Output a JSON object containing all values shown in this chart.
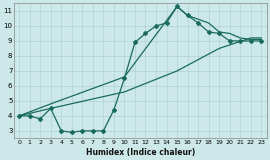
{
  "xlabel": "Humidex (Indice chaleur)",
  "bg_color": "#cce8e8",
  "line_color": "#1a6b5e",
  "grid_color": "#aacccc",
  "xlim": [
    -0.5,
    23.5
  ],
  "ylim": [
    2.5,
    11.5
  ],
  "xticks": [
    0,
    1,
    2,
    3,
    4,
    5,
    6,
    7,
    8,
    9,
    10,
    11,
    12,
    13,
    14,
    15,
    16,
    17,
    18,
    19,
    20,
    21,
    22,
    23
  ],
  "yticks": [
    3,
    4,
    5,
    6,
    7,
    8,
    9,
    10,
    11
  ],
  "line1_x": [
    0,
    1,
    2,
    3,
    4,
    5,
    6,
    7,
    8,
    9,
    10,
    11,
    12,
    13,
    14,
    15,
    16,
    17,
    18,
    19,
    20,
    21,
    22,
    23
  ],
  "line1_y": [
    4.0,
    4.0,
    3.8,
    4.5,
    3.0,
    2.9,
    3.0,
    3.0,
    3.0,
    4.4,
    6.5,
    8.9,
    9.5,
    10.0,
    10.2,
    11.3,
    10.7,
    10.2,
    9.6,
    9.5,
    9.0,
    9.0,
    9.0,
    9.0
  ],
  "line2_x": [
    0,
    3,
    10,
    15,
    19,
    22,
    23
  ],
  "line2_y": [
    4.0,
    4.5,
    5.6,
    7.0,
    8.5,
    9.2,
    9.2
  ],
  "line3_x": [
    0,
    3,
    10,
    15,
    16,
    18,
    19,
    20,
    21,
    22,
    23
  ],
  "line3_y": [
    4.0,
    4.8,
    6.6,
    11.3,
    10.7,
    10.2,
    9.6,
    9.5,
    9.2,
    9.1,
    9.1
  ]
}
